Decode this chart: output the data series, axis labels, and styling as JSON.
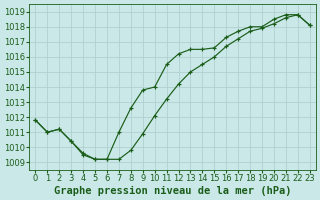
{
  "title": "Graphe pression niveau de la mer (hPa)",
  "background_color": "#cbe8e8",
  "grid_color": "#b0d0d0",
  "line_color": "#1a5e1a",
  "xlim": [
    -0.5,
    23.5
  ],
  "ylim": [
    1008.5,
    1019.5
  ],
  "xticks": [
    0,
    1,
    2,
    3,
    4,
    5,
    6,
    7,
    8,
    9,
    10,
    11,
    12,
    13,
    14,
    15,
    16,
    17,
    18,
    19,
    20,
    21,
    22,
    23
  ],
  "yticks": [
    1009,
    1010,
    1011,
    1012,
    1013,
    1014,
    1015,
    1016,
    1017,
    1018,
    1019
  ],
  "series1_x": [
    0,
    1,
    2,
    3,
    4,
    5,
    6,
    7,
    8,
    9,
    10,
    11,
    12,
    13,
    14,
    15,
    16,
    17,
    18,
    19,
    20,
    21,
    22,
    23
  ],
  "series1_y": [
    1011.8,
    1011.0,
    1011.2,
    1010.4,
    1009.6,
    1009.2,
    1009.2,
    1011.0,
    1012.6,
    1013.8,
    1014.0,
    1015.5,
    1016.2,
    1016.5,
    1016.5,
    1016.6,
    1017.3,
    1017.7,
    1018.0,
    1018.0,
    1018.5,
    1018.8,
    1018.8,
    1018.1
  ],
  "series2_x": [
    0,
    1,
    2,
    3,
    4,
    5,
    6,
    7,
    8,
    9,
    10,
    11,
    12,
    13,
    14,
    15,
    16,
    17,
    18,
    19,
    20,
    21,
    22,
    23
  ],
  "series2_y": [
    1011.8,
    1011.0,
    1011.2,
    1010.4,
    1009.5,
    1009.2,
    1009.2,
    1009.2,
    1009.8,
    1010.9,
    1012.1,
    1013.2,
    1014.2,
    1015.0,
    1015.5,
    1016.0,
    1016.7,
    1017.2,
    1017.7,
    1017.9,
    1018.2,
    1018.6,
    1018.8,
    1018.1
  ],
  "title_fontsize": 7.5,
  "tick_fontsize": 6.0
}
